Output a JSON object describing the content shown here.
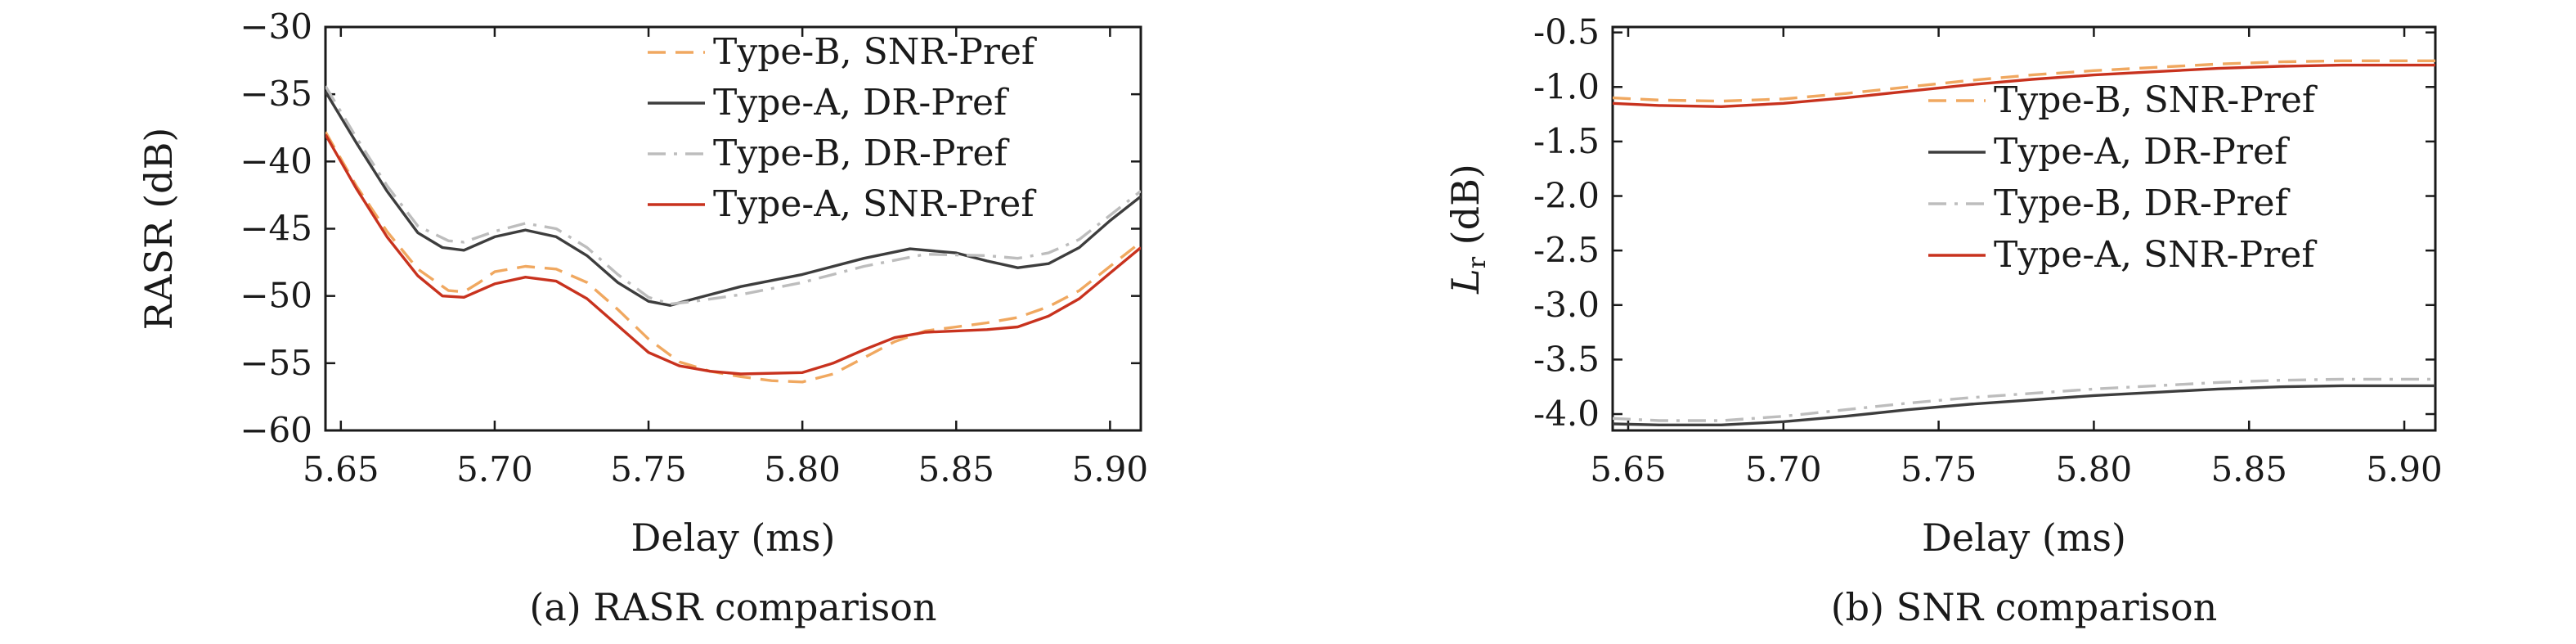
{
  "chart_data": [
    {
      "type": "line",
      "caption": "(a) RASR comparison",
      "xlabel": "Delay (ms)",
      "ylabel": "RASR (dB)",
      "xlim": [
        5.645,
        5.91
      ],
      "ylim": [
        -60,
        -30
      ],
      "xticks": [
        5.65,
        5.7,
        5.75,
        5.8,
        5.85,
        5.9
      ],
      "xtick_labels": [
        "5.65",
        "5.70",
        "5.75",
        "5.80",
        "5.85",
        "5.90"
      ],
      "yticks": [
        -60,
        -55,
        -50,
        -45,
        -40,
        -35,
        -30
      ],
      "ytick_labels": [
        "−60",
        "−55",
        "−50",
        "−45",
        "−40",
        "−35",
        "−30"
      ],
      "legend_position": "top-right",
      "series": [
        {
          "name": "Type-B, SNR-Pref",
          "color": "#f0a860",
          "dash": "dashed",
          "points": [
            [
              5.645,
              -37.8
            ],
            [
              5.655,
              -41.8
            ],
            [
              5.665,
              -45.2
            ],
            [
              5.675,
              -48.0
            ],
            [
              5.685,
              -49.6
            ],
            [
              5.69,
              -49.7
            ],
            [
              5.695,
              -49.0
            ],
            [
              5.7,
              -48.2
            ],
            [
              5.71,
              -47.8
            ],
            [
              5.72,
              -48.0
            ],
            [
              5.73,
              -49.0
            ],
            [
              5.74,
              -51.0
            ],
            [
              5.75,
              -53.2
            ],
            [
              5.76,
              -54.9
            ],
            [
              5.77,
              -55.6
            ],
            [
              5.78,
              -56.0
            ],
            [
              5.79,
              -56.3
            ],
            [
              5.8,
              -56.4
            ],
            [
              5.81,
              -55.8
            ],
            [
              5.82,
              -54.6
            ],
            [
              5.83,
              -53.4
            ],
            [
              5.84,
              -52.6
            ],
            [
              5.85,
              -52.3
            ],
            [
              5.86,
              -52.0
            ],
            [
              5.87,
              -51.6
            ],
            [
              5.88,
              -50.8
            ],
            [
              5.89,
              -49.6
            ],
            [
              5.9,
              -47.8
            ],
            [
              5.91,
              -46.0
            ]
          ]
        },
        {
          "name": "Type-A, DR-Pref",
          "color": "#3d3d3d",
          "dash": "solid",
          "points": [
            [
              5.645,
              -34.8
            ],
            [
              5.655,
              -38.6
            ],
            [
              5.665,
              -42.2
            ],
            [
              5.675,
              -45.3
            ],
            [
              5.683,
              -46.4
            ],
            [
              5.69,
              -46.6
            ],
            [
              5.7,
              -45.6
            ],
            [
              5.71,
              -45.1
            ],
            [
              5.72,
              -45.6
            ],
            [
              5.73,
              -47.0
            ],
            [
              5.74,
              -49.0
            ],
            [
              5.75,
              -50.4
            ],
            [
              5.757,
              -50.7
            ],
            [
              5.765,
              -50.2
            ],
            [
              5.78,
              -49.3
            ],
            [
              5.8,
              -48.4
            ],
            [
              5.82,
              -47.2
            ],
            [
              5.835,
              -46.5
            ],
            [
              5.85,
              -46.8
            ],
            [
              5.86,
              -47.4
            ],
            [
              5.87,
              -47.9
            ],
            [
              5.88,
              -47.6
            ],
            [
              5.89,
              -46.4
            ],
            [
              5.9,
              -44.4
            ],
            [
              5.91,
              -42.6
            ]
          ]
        },
        {
          "name": "Type-B, DR-Pref",
          "color": "#bdbdbd",
          "dash": "dashdot",
          "points": [
            [
              5.645,
              -34.4
            ],
            [
              5.655,
              -38.2
            ],
            [
              5.665,
              -41.8
            ],
            [
              5.675,
              -44.8
            ],
            [
              5.685,
              -45.9
            ],
            [
              5.69,
              -46.0
            ],
            [
              5.7,
              -45.2
            ],
            [
              5.71,
              -44.6
            ],
            [
              5.72,
              -45.0
            ],
            [
              5.73,
              -46.4
            ],
            [
              5.74,
              -48.4
            ],
            [
              5.75,
              -50.1
            ],
            [
              5.757,
              -50.6
            ],
            [
              5.765,
              -50.4
            ],
            [
              5.78,
              -49.9
            ],
            [
              5.8,
              -49.0
            ],
            [
              5.82,
              -47.8
            ],
            [
              5.84,
              -46.9
            ],
            [
              5.86,
              -47.0
            ],
            [
              5.87,
              -47.2
            ],
            [
              5.88,
              -46.8
            ],
            [
              5.89,
              -45.8
            ],
            [
              5.9,
              -44.0
            ],
            [
              5.91,
              -42.2
            ]
          ]
        },
        {
          "name": "Type-A, SNR-Pref",
          "color": "#c8321e",
          "dash": "solid",
          "points": [
            [
              5.645,
              -38.0
            ],
            [
              5.655,
              -42.0
            ],
            [
              5.665,
              -45.6
            ],
            [
              5.675,
              -48.5
            ],
            [
              5.683,
              -50.0
            ],
            [
              5.69,
              -50.1
            ],
            [
              5.7,
              -49.1
            ],
            [
              5.71,
              -48.6
            ],
            [
              5.72,
              -48.9
            ],
            [
              5.73,
              -50.2
            ],
            [
              5.74,
              -52.2
            ],
            [
              5.75,
              -54.2
            ],
            [
              5.76,
              -55.2
            ],
            [
              5.77,
              -55.6
            ],
            [
              5.78,
              -55.8
            ],
            [
              5.8,
              -55.7
            ],
            [
              5.81,
              -55.0
            ],
            [
              5.82,
              -54.0
            ],
            [
              5.83,
              -53.1
            ],
            [
              5.84,
              -52.7
            ],
            [
              5.85,
              -52.6
            ],
            [
              5.86,
              -52.5
            ],
            [
              5.87,
              -52.3
            ],
            [
              5.88,
              -51.5
            ],
            [
              5.89,
              -50.2
            ],
            [
              5.9,
              -48.3
            ],
            [
              5.91,
              -46.4
            ]
          ]
        }
      ]
    },
    {
      "type": "line",
      "caption": "(b) SNR comparison",
      "xlabel": "Delay (ms)",
      "ylabel_main": "L",
      "ylabel_sub": "r",
      "ylabel_unit": " (dB)",
      "xlim": [
        5.645,
        5.91
      ],
      "ylim": [
        -4.15,
        -0.45
      ],
      "xticks": [
        5.65,
        5.7,
        5.75,
        5.8,
        5.85,
        5.9
      ],
      "xtick_labels": [
        "5.65",
        "5.70",
        "5.75",
        "5.80",
        "5.85",
        "5.90"
      ],
      "yticks": [
        -4.0,
        -3.5,
        -3.0,
        -2.5,
        -2.0,
        -1.5,
        -1.0,
        -0.5
      ],
      "ytick_labels": [
        "-4.0",
        "-3.5",
        "-3.0",
        "-2.5",
        "-2.0",
        "-1.5",
        "-1.0",
        "-0.5"
      ],
      "legend_position": "right",
      "series": [
        {
          "name": "Type-B, SNR-Pref",
          "color": "#f0a860",
          "dash": "dashed",
          "points": [
            [
              5.645,
              -1.1
            ],
            [
              5.66,
              -1.12
            ],
            [
              5.68,
              -1.13
            ],
            [
              5.7,
              -1.11
            ],
            [
              5.72,
              -1.06
            ],
            [
              5.74,
              -1.0
            ],
            [
              5.76,
              -0.94
            ],
            [
              5.78,
              -0.89
            ],
            [
              5.8,
              -0.85
            ],
            [
              5.82,
              -0.82
            ],
            [
              5.84,
              -0.79
            ],
            [
              5.86,
              -0.77
            ],
            [
              5.88,
              -0.76
            ],
            [
              5.91,
              -0.76
            ]
          ]
        },
        {
          "name": "Type-A, DR-Pref",
          "color": "#3d3d3d",
          "dash": "solid",
          "points": [
            [
              5.645,
              -4.09
            ],
            [
              5.66,
              -4.1
            ],
            [
              5.68,
              -4.1
            ],
            [
              5.7,
              -4.07
            ],
            [
              5.72,
              -4.02
            ],
            [
              5.74,
              -3.96
            ],
            [
              5.76,
              -3.91
            ],
            [
              5.78,
              -3.87
            ],
            [
              5.8,
              -3.83
            ],
            [
              5.82,
              -3.8
            ],
            [
              5.84,
              -3.77
            ],
            [
              5.86,
              -3.75
            ],
            [
              5.88,
              -3.74
            ],
            [
              5.91,
              -3.74
            ]
          ]
        },
        {
          "name": "Type-B, DR-Pref",
          "color": "#bdbdbd",
          "dash": "dashdot",
          "points": [
            [
              5.645,
              -4.04
            ],
            [
              5.66,
              -4.06
            ],
            [
              5.68,
              -4.06
            ],
            [
              5.7,
              -4.02
            ],
            [
              5.72,
              -3.96
            ],
            [
              5.74,
              -3.9
            ],
            [
              5.76,
              -3.85
            ],
            [
              5.78,
              -3.81
            ],
            [
              5.8,
              -3.77
            ],
            [
              5.82,
              -3.74
            ],
            [
              5.84,
              -3.71
            ],
            [
              5.86,
              -3.69
            ],
            [
              5.88,
              -3.68
            ],
            [
              5.91,
              -3.68
            ]
          ]
        },
        {
          "name": "Type-A, SNR-Pref",
          "color": "#c8321e",
          "dash": "solid",
          "points": [
            [
              5.645,
              -1.15
            ],
            [
              5.66,
              -1.17
            ],
            [
              5.68,
              -1.18
            ],
            [
              5.7,
              -1.15
            ],
            [
              5.72,
              -1.1
            ],
            [
              5.74,
              -1.04
            ],
            [
              5.76,
              -0.98
            ],
            [
              5.78,
              -0.93
            ],
            [
              5.8,
              -0.89
            ],
            [
              5.82,
              -0.86
            ],
            [
              5.84,
              -0.83
            ],
            [
              5.86,
              -0.81
            ],
            [
              5.88,
              -0.8
            ],
            [
              5.91,
              -0.8
            ]
          ]
        }
      ]
    }
  ]
}
